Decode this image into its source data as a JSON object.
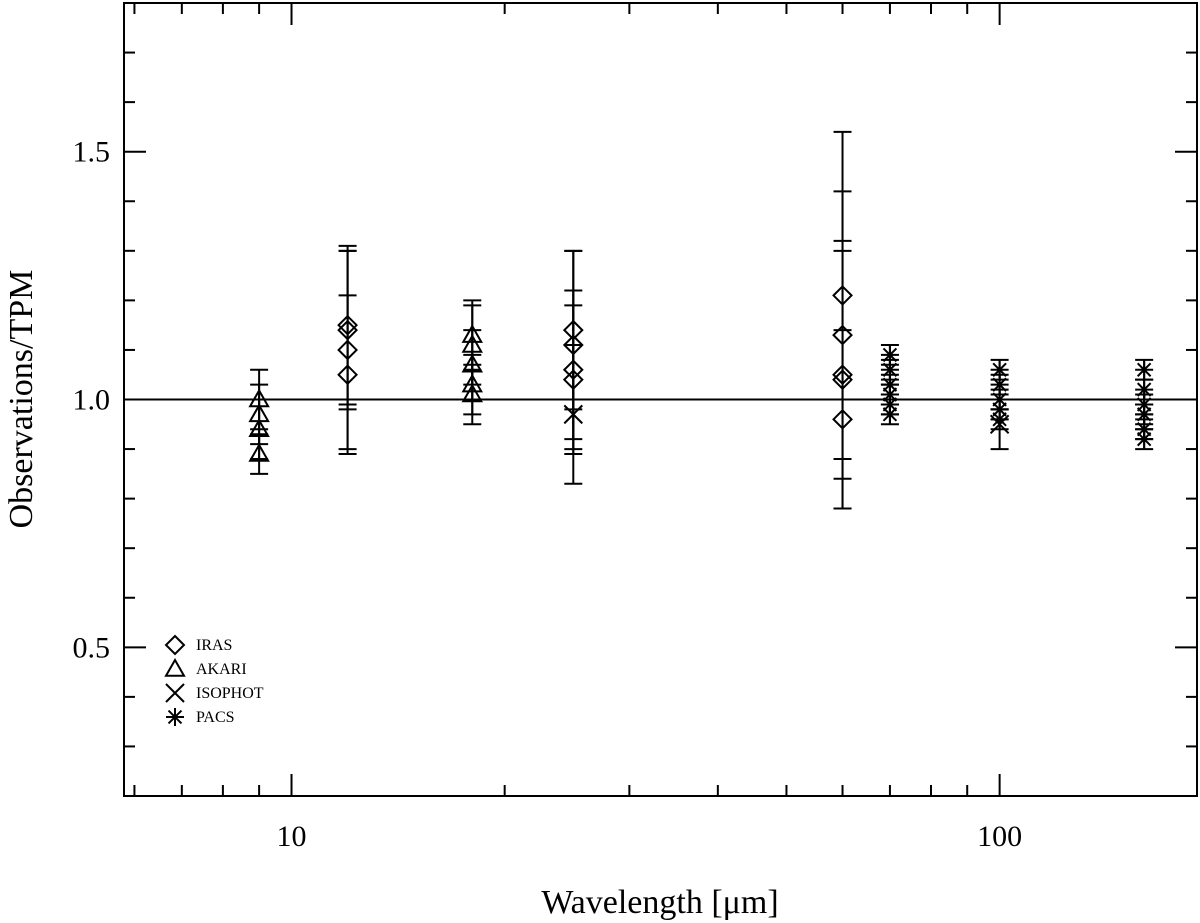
{
  "chart_data": {
    "type": "scatter",
    "title": "",
    "xlabel": "Wavelength [μm]",
    "ylabel": "Observations/TPM",
    "xscale": "log",
    "xlim": [
      5.8,
      190
    ],
    "ylim": [
      0.2,
      1.8
    ],
    "x_major_ticks": [
      10,
      100
    ],
    "x_tick_labels": [
      "10",
      "100"
    ],
    "x_minor_ticks": [
      6,
      7,
      8,
      9,
      20,
      30,
      40,
      50,
      60,
      70,
      80,
      90
    ],
    "y_major_ticks": [
      0.5,
      1.0,
      1.5
    ],
    "y_tick_labels": [
      "0.5",
      "1.0",
      "1.5"
    ],
    "y_minor_ticks": [
      0.3,
      0.4,
      0.6,
      0.7,
      0.8,
      0.9,
      1.1,
      1.2,
      1.3,
      1.4,
      1.6,
      1.7
    ],
    "reference_line": 1.0,
    "grid": false,
    "legend_position": "bottom-left",
    "series": [
      {
        "name": "IRAS",
        "marker": "diamond",
        "points": [
          {
            "x": 12,
            "y": 1.15,
            "err": 0.16
          },
          {
            "x": 12,
            "y": 1.14,
            "err": 0.16
          },
          {
            "x": 12,
            "y": 1.1,
            "err": 0.2
          },
          {
            "x": 12,
            "y": 1.05,
            "err": 0.16
          },
          {
            "x": 25,
            "y": 1.14,
            "err": 0.16
          },
          {
            "x": 25,
            "y": 1.11,
            "err": 0.19
          },
          {
            "x": 25,
            "y": 1.06,
            "err": 0.16
          },
          {
            "x": 25,
            "y": 1.04,
            "err": 0.15
          },
          {
            "x": 60,
            "y": 1.21,
            "err": 0.33
          },
          {
            "x": 60,
            "y": 1.13,
            "err": 0.29
          },
          {
            "x": 60,
            "y": 1.05,
            "err": 0.27
          },
          {
            "x": 60,
            "y": 1.04,
            "err": 0.26
          },
          {
            "x": 60,
            "y": 0.96,
            "err": 0.18
          }
        ]
      },
      {
        "name": "AKARI",
        "marker": "triangle",
        "points": [
          {
            "x": 9,
            "y": 1.0,
            "err": 0.06
          },
          {
            "x": 9,
            "y": 0.97,
            "err": 0.06
          },
          {
            "x": 9,
            "y": 0.94,
            "err": 0.06
          },
          {
            "x": 9,
            "y": 0.89,
            "err": 0.04
          },
          {
            "x": 18,
            "y": 1.13,
            "err": 0.07
          },
          {
            "x": 18,
            "y": 1.11,
            "err": 0.08
          },
          {
            "x": 18,
            "y": 1.07,
            "err": 0.07
          },
          {
            "x": 18,
            "y": 1.03,
            "err": 0.06
          },
          {
            "x": 18,
            "y": 1.01,
            "err": 0.06
          }
        ]
      },
      {
        "name": "ISOPHOT",
        "marker": "x",
        "points": [
          {
            "x": 25,
            "y": 0.97,
            "err": 0.14
          },
          {
            "x": 100,
            "y": 0.95,
            "err": 0.05
          }
        ]
      },
      {
        "name": "PACS",
        "marker": "asterisk",
        "points": [
          {
            "x": 70,
            "y": 1.09,
            "err": 0.02
          },
          {
            "x": 70,
            "y": 1.06,
            "err": 0.02
          },
          {
            "x": 70,
            "y": 1.03,
            "err": 0.02
          },
          {
            "x": 70,
            "y": 1.01,
            "err": 0.02
          },
          {
            "x": 70,
            "y": 0.99,
            "err": 0.02
          },
          {
            "x": 70,
            "y": 0.97,
            "err": 0.02
          },
          {
            "x": 100,
            "y": 1.06,
            "err": 0.02
          },
          {
            "x": 100,
            "y": 1.03,
            "err": 0.02
          },
          {
            "x": 100,
            "y": 1.0,
            "err": 0.02
          },
          {
            "x": 100,
            "y": 0.98,
            "err": 0.02
          },
          {
            "x": 100,
            "y": 0.96,
            "err": 0.02
          },
          {
            "x": 160,
            "y": 1.06,
            "err": 0.02
          },
          {
            "x": 160,
            "y": 1.02,
            "err": 0.02
          },
          {
            "x": 160,
            "y": 0.99,
            "err": 0.02
          },
          {
            "x": 160,
            "y": 0.97,
            "err": 0.02
          },
          {
            "x": 160,
            "y": 0.94,
            "err": 0.02
          },
          {
            "x": 160,
            "y": 0.92,
            "err": 0.02
          }
        ]
      }
    ]
  }
}
